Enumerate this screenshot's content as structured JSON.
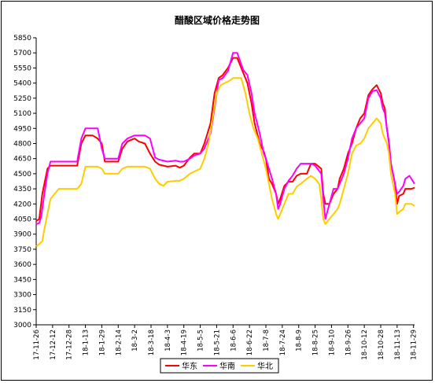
{
  "chart_data": {
    "type": "line",
    "title": "醋酸区域价格走势图",
    "xlabel": "",
    "ylabel": "",
    "ylim": [
      3000,
      5850
    ],
    "yticks": [
      3000,
      3150,
      3300,
      3450,
      3600,
      3750,
      3900,
      4050,
      4200,
      4350,
      4500,
      4650,
      4800,
      4950,
      5100,
      5250,
      5400,
      5550,
      5700,
      5850
    ],
    "x_tick_labels": [
      "17-11-26",
      "17-12-12",
      "17-12-28",
      "18-1-13",
      "18-1-29",
      "18-2-14",
      "18-3-2",
      "18-3-18",
      "18-4-3",
      "18-4-19",
      "18-5-5",
      "18-5-21",
      "18-6-6",
      "18-6-22",
      "18-7-8",
      "18-7-24",
      "18-8-9",
      "18-8-25",
      "18-9-10",
      "18-9-26",
      "18-10-12",
      "18-10-28",
      "18-11-13",
      "18-11-29"
    ],
    "x_tick_days": [
      0,
      16,
      32,
      48,
      64,
      80,
      96,
      112,
      128,
      144,
      160,
      176,
      192,
      208,
      224,
      240,
      256,
      272,
      288,
      304,
      320,
      336,
      352,
      368
    ],
    "x_range_days": [
      0,
      369
    ],
    "legend_placement": "bottom",
    "grid": false,
    "series": [
      {
        "name": "华东",
        "color": "#ff0000",
        "points": [
          [
            0,
            4030
          ],
          [
            3,
            4050
          ],
          [
            6,
            4300
          ],
          [
            9,
            4450
          ],
          [
            11,
            4550
          ],
          [
            14,
            4580
          ],
          [
            20,
            4580
          ],
          [
            30,
            4580
          ],
          [
            40,
            4580
          ],
          [
            44,
            4800
          ],
          [
            48,
            4880
          ],
          [
            55,
            4880
          ],
          [
            60,
            4850
          ],
          [
            64,
            4800
          ],
          [
            67,
            4620
          ],
          [
            72,
            4620
          ],
          [
            80,
            4620
          ],
          [
            84,
            4750
          ],
          [
            89,
            4820
          ],
          [
            96,
            4850
          ],
          [
            100,
            4820
          ],
          [
            106,
            4800
          ],
          [
            111,
            4700
          ],
          [
            116,
            4620
          ],
          [
            120,
            4590
          ],
          [
            128,
            4570
          ],
          [
            136,
            4580
          ],
          [
            140,
            4560
          ],
          [
            144,
            4580
          ],
          [
            150,
            4660
          ],
          [
            154,
            4700
          ],
          [
            160,
            4700
          ],
          [
            164,
            4800
          ],
          [
            170,
            5000
          ],
          [
            174,
            5300
          ],
          [
            178,
            5450
          ],
          [
            182,
            5480
          ],
          [
            187,
            5550
          ],
          [
            192,
            5650
          ],
          [
            196,
            5650
          ],
          [
            202,
            5500
          ],
          [
            206,
            5400
          ],
          [
            210,
            5200
          ],
          [
            213,
            5000
          ],
          [
            218,
            4800
          ],
          [
            222,
            4720
          ],
          [
            224,
            4650
          ],
          [
            227,
            4450
          ],
          [
            230,
            4400
          ],
          [
            234,
            4300
          ],
          [
            236,
            4200
          ],
          [
            238,
            4250
          ],
          [
            242,
            4380
          ],
          [
            246,
            4420
          ],
          [
            250,
            4420
          ],
          [
            254,
            4480
          ],
          [
            258,
            4500
          ],
          [
            264,
            4500
          ],
          [
            268,
            4600
          ],
          [
            272,
            4600
          ],
          [
            278,
            4550
          ],
          [
            280,
            4300
          ],
          [
            282,
            4200
          ],
          [
            286,
            4200
          ],
          [
            290,
            4300
          ],
          [
            294,
            4350
          ],
          [
            296,
            4450
          ],
          [
            300,
            4550
          ],
          [
            304,
            4700
          ],
          [
            308,
            4800
          ],
          [
            312,
            4950
          ],
          [
            316,
            5050
          ],
          [
            320,
            5100
          ],
          [
            324,
            5280
          ],
          [
            328,
            5340
          ],
          [
            332,
            5380
          ],
          [
            336,
            5300
          ],
          [
            338,
            5200
          ],
          [
            340,
            5150
          ],
          [
            342,
            4950
          ],
          [
            344,
            4820
          ],
          [
            346,
            4600
          ],
          [
            348,
            4500
          ],
          [
            350,
            4400
          ],
          [
            352,
            4200
          ],
          [
            354,
            4280
          ],
          [
            358,
            4300
          ],
          [
            360,
            4350
          ],
          [
            366,
            4350
          ],
          [
            369,
            4360
          ]
        ]
      },
      {
        "name": "华南",
        "color": "#ff00ff",
        "points": [
          [
            0,
            4000
          ],
          [
            3,
            4010
          ],
          [
            5,
            4080
          ],
          [
            8,
            4300
          ],
          [
            11,
            4500
          ],
          [
            14,
            4620
          ],
          [
            20,
            4620
          ],
          [
            30,
            4620
          ],
          [
            40,
            4620
          ],
          [
            44,
            4850
          ],
          [
            48,
            4950
          ],
          [
            55,
            4950
          ],
          [
            60,
            4950
          ],
          [
            64,
            4750
          ],
          [
            67,
            4650
          ],
          [
            72,
            4650
          ],
          [
            80,
            4650
          ],
          [
            84,
            4800
          ],
          [
            89,
            4850
          ],
          [
            96,
            4880
          ],
          [
            100,
            4880
          ],
          [
            106,
            4880
          ],
          [
            111,
            4850
          ],
          [
            116,
            4660
          ],
          [
            120,
            4640
          ],
          [
            128,
            4620
          ],
          [
            136,
            4630
          ],
          [
            140,
            4620
          ],
          [
            144,
            4620
          ],
          [
            150,
            4650
          ],
          [
            154,
            4680
          ],
          [
            160,
            4700
          ],
          [
            164,
            4750
          ],
          [
            170,
            4900
          ],
          [
            174,
            5150
          ],
          [
            178,
            5430
          ],
          [
            182,
            5450
          ],
          [
            187,
            5520
          ],
          [
            192,
            5700
          ],
          [
            196,
            5700
          ],
          [
            202,
            5530
          ],
          [
            206,
            5480
          ],
          [
            210,
            5300
          ],
          [
            213,
            5100
          ],
          [
            218,
            4900
          ],
          [
            222,
            4700
          ],
          [
            224,
            4650
          ],
          [
            227,
            4550
          ],
          [
            230,
            4450
          ],
          [
            234,
            4300
          ],
          [
            236,
            4150
          ],
          [
            238,
            4200
          ],
          [
            242,
            4350
          ],
          [
            246,
            4430
          ],
          [
            250,
            4480
          ],
          [
            254,
            4550
          ],
          [
            258,
            4600
          ],
          [
            264,
            4600
          ],
          [
            268,
            4600
          ],
          [
            272,
            4580
          ],
          [
            278,
            4500
          ],
          [
            280,
            4250
          ],
          [
            282,
            4050
          ],
          [
            286,
            4200
          ],
          [
            290,
            4350
          ],
          [
            294,
            4350
          ],
          [
            296,
            4400
          ],
          [
            300,
            4500
          ],
          [
            304,
            4650
          ],
          [
            308,
            4850
          ],
          [
            312,
            4950
          ],
          [
            316,
            5000
          ],
          [
            320,
            5050
          ],
          [
            324,
            5250
          ],
          [
            328,
            5320
          ],
          [
            332,
            5330
          ],
          [
            336,
            5250
          ],
          [
            338,
            5150
          ],
          [
            340,
            5100
          ],
          [
            342,
            4950
          ],
          [
            344,
            4800
          ],
          [
            346,
            4600
          ],
          [
            348,
            4500
          ],
          [
            350,
            4400
          ],
          [
            352,
            4300
          ],
          [
            354,
            4320
          ],
          [
            358,
            4380
          ],
          [
            360,
            4450
          ],
          [
            364,
            4480
          ],
          [
            369,
            4400
          ]
        ]
      },
      {
        "name": "华北",
        "color": "#ffcc00",
        "points": [
          [
            0,
            3780
          ],
          [
            3,
            3800
          ],
          [
            6,
            3830
          ],
          [
            8,
            3950
          ],
          [
            10,
            4050
          ],
          [
            12,
            4150
          ],
          [
            14,
            4250
          ],
          [
            18,
            4300
          ],
          [
            22,
            4350
          ],
          [
            30,
            4350
          ],
          [
            40,
            4350
          ],
          [
            44,
            4400
          ],
          [
            48,
            4570
          ],
          [
            55,
            4570
          ],
          [
            60,
            4570
          ],
          [
            64,
            4550
          ],
          [
            67,
            4500
          ],
          [
            72,
            4500
          ],
          [
            80,
            4500
          ],
          [
            84,
            4550
          ],
          [
            89,
            4570
          ],
          [
            96,
            4570
          ],
          [
            100,
            4570
          ],
          [
            106,
            4570
          ],
          [
            111,
            4550
          ],
          [
            116,
            4450
          ],
          [
            120,
            4400
          ],
          [
            124,
            4380
          ],
          [
            128,
            4420
          ],
          [
            136,
            4430
          ],
          [
            140,
            4430
          ],
          [
            144,
            4450
          ],
          [
            150,
            4500
          ],
          [
            154,
            4520
          ],
          [
            160,
            4550
          ],
          [
            164,
            4650
          ],
          [
            168,
            4800
          ],
          [
            172,
            5050
          ],
          [
            176,
            5300
          ],
          [
            180,
            5380
          ],
          [
            184,
            5400
          ],
          [
            188,
            5420
          ],
          [
            192,
            5450
          ],
          [
            196,
            5450
          ],
          [
            200,
            5450
          ],
          [
            204,
            5300
          ],
          [
            208,
            5100
          ],
          [
            212,
            4950
          ],
          [
            216,
            4850
          ],
          [
            220,
            4700
          ],
          [
            224,
            4550
          ],
          [
            227,
            4400
          ],
          [
            230,
            4250
          ],
          [
            234,
            4100
          ],
          [
            236,
            4050
          ],
          [
            238,
            4100
          ],
          [
            242,
            4200
          ],
          [
            246,
            4300
          ],
          [
            250,
            4300
          ],
          [
            254,
            4370
          ],
          [
            258,
            4400
          ],
          [
            264,
            4450
          ],
          [
            268,
            4480
          ],
          [
            272,
            4450
          ],
          [
            276,
            4400
          ],
          [
            278,
            4250
          ],
          [
            280,
            4050
          ],
          [
            282,
            4000
          ],
          [
            286,
            4050
          ],
          [
            290,
            4100
          ],
          [
            294,
            4150
          ],
          [
            296,
            4200
          ],
          [
            300,
            4350
          ],
          [
            304,
            4500
          ],
          [
            308,
            4700
          ],
          [
            312,
            4780
          ],
          [
            316,
            4800
          ],
          [
            320,
            4850
          ],
          [
            324,
            4950
          ],
          [
            328,
            5000
          ],
          [
            332,
            5050
          ],
          [
            336,
            5000
          ],
          [
            338,
            4900
          ],
          [
            340,
            4850
          ],
          [
            342,
            4800
          ],
          [
            344,
            4700
          ],
          [
            346,
            4500
          ],
          [
            348,
            4400
          ],
          [
            350,
            4300
          ],
          [
            352,
            4100
          ],
          [
            354,
            4120
          ],
          [
            358,
            4150
          ],
          [
            360,
            4200
          ],
          [
            366,
            4200
          ],
          [
            369,
            4180
          ]
        ]
      }
    ]
  }
}
